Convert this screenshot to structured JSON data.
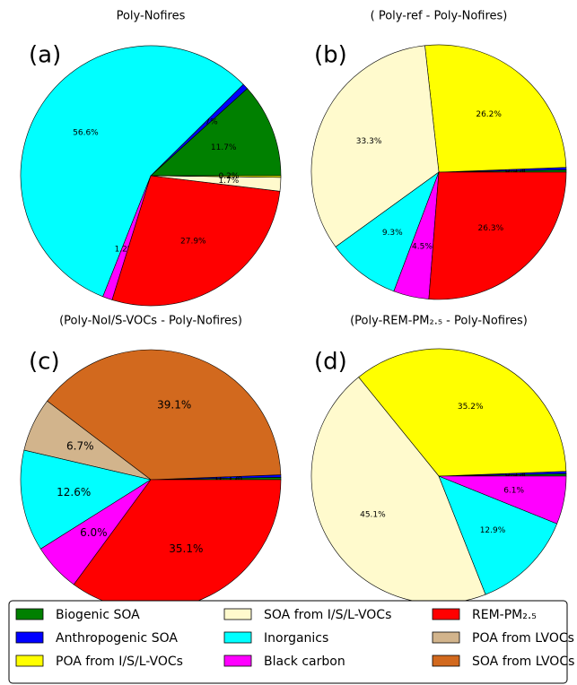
{
  "chart_data": [
    {
      "type": "pie",
      "title": "Poly-Nofires",
      "panel_label": "(a)",
      "colors": [
        "#008000",
        "#0000ff",
        "#00ffff",
        "#ff00ff",
        "#ff0000",
        "#fffacd",
        "#ffff00"
      ],
      "values": [
        11.7,
        0.7,
        56.6,
        1.2,
        27.9,
        1.7,
        0.2
      ],
      "value_labels": [
        "11.7%",
        "0.7%",
        "56.6%",
        "1.2%",
        "27.9%",
        "1.7%",
        "0.2%"
      ]
    },
    {
      "type": "pie",
      "title": "( Poly-ref - Poly-Nofires)",
      "panel_label": "(b)",
      "colors": [
        "#008000",
        "#0000ff",
        "#ffff00",
        "#fffacd",
        "#00ffff",
        "#ff00ff",
        "#ff0000"
      ],
      "values": [
        0.3,
        0.3,
        26.2,
        33.3,
        9.3,
        4.5,
        26.3
      ],
      "value_labels": [
        "0.3%",
        "0.3%",
        "26.2%",
        "33.3%",
        "9.3%",
        "4.5%",
        "26.3%"
      ]
    },
    {
      "type": "pie",
      "title": "(Poly-NoI/S-VOCs - Poly-Nofires)",
      "panel_label": "(c)",
      "colors": [
        "#008000",
        "#0000ff",
        "#d2691e",
        "#d2b48c",
        "#00ffff",
        "#ff00ff",
        "#ff0000"
      ],
      "values": [
        0.3,
        0.3,
        39.1,
        6.7,
        12.6,
        6.0,
        35.1
      ],
      "value_labels": [
        "0.3%",
        "0.3%",
        "39.1%",
        "6.7%",
        "12.6%",
        "6.0%",
        "35.1%"
      ]
    },
    {
      "type": "pie",
      "title": "(Poly-REM-PM₂.₅ - Poly-Nofires)",
      "panel_label": "(d)",
      "colors": [
        "#008000",
        "#0000ff",
        "#ffff00",
        "#fffacd",
        "#00ffff",
        "#ff00ff"
      ],
      "values": [
        0.3,
        0.3,
        35.2,
        45.1,
        12.9,
        6.1
      ],
      "value_labels": [
        "0.3%",
        "0.3%",
        "35.2%",
        "45.1%",
        "12.9%",
        "6.1%"
      ]
    }
  ],
  "legend": {
    "items": [
      {
        "name": "Biogenic SOA",
        "color": "#008000"
      },
      {
        "name": "Anthropogenic SOA",
        "color": "#0000ff"
      },
      {
        "name": " POA from I/S/L-VOCs",
        "color": "#ffff00"
      },
      {
        "name": "SOA from I/S/L-VOCs",
        "color": "#fffacd"
      },
      {
        "name": "Inorganics",
        "color": "#00ffff"
      },
      {
        "name": "Black carbon",
        "color": "#ff00ff"
      },
      {
        "name": "REM-PM₂.₅",
        "color": "#ff0000"
      },
      {
        "name": "POA from LVOCs",
        "color": "#d2b48c"
      },
      {
        "name": "SOA from LVOCs",
        "color": "#d2691e"
      }
    ]
  }
}
